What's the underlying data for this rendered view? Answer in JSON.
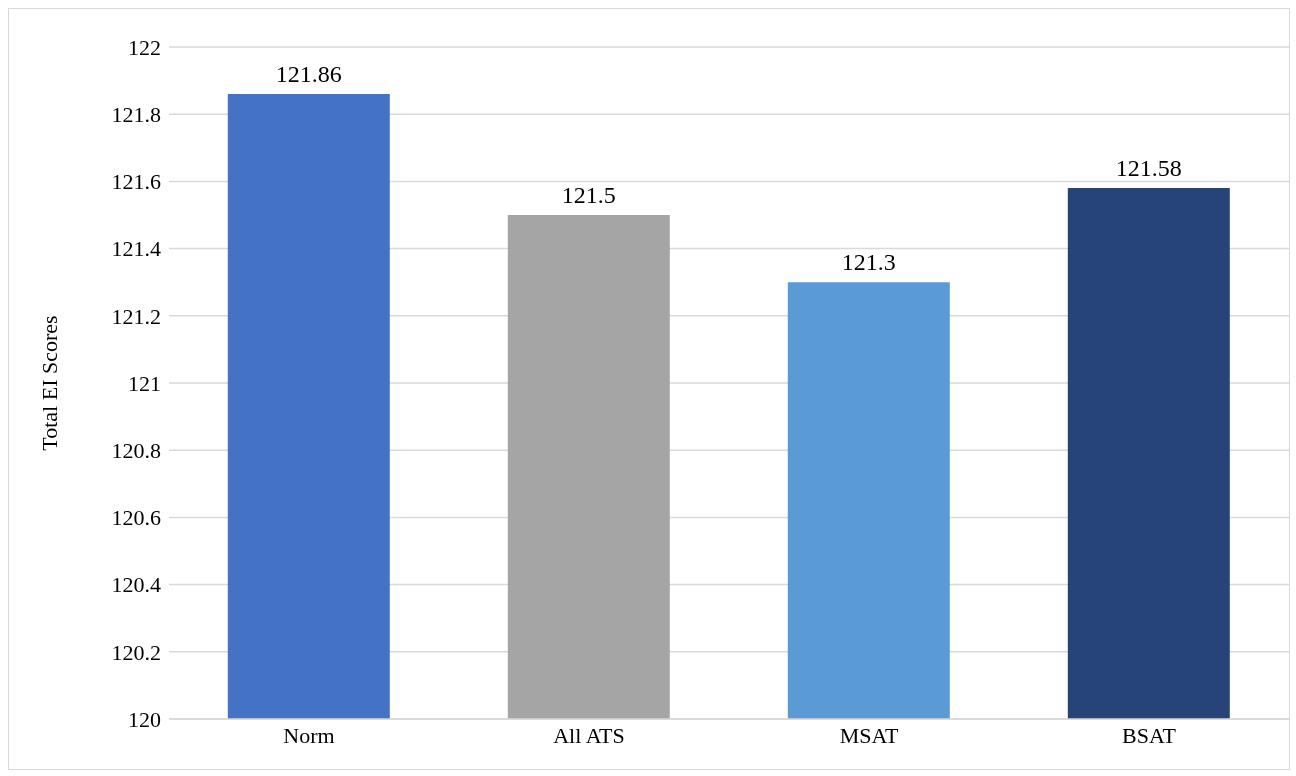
{
  "chart_data": {
    "type": "bar",
    "ylabel": "Total EI Scores",
    "categories": [
      "Norm",
      "All ATS",
      "MSAT",
      "BSAT"
    ],
    "values": [
      121.86,
      121.5,
      121.3,
      121.58
    ],
    "colors": [
      "#4472c4",
      "#a5a5a5",
      "#5b9bd5",
      "#264478"
    ],
    "ylim": [
      120,
      122
    ],
    "yticks": [
      120,
      120.2,
      120.4,
      120.6,
      120.8,
      121,
      121.2,
      121.4,
      121.6,
      121.8,
      122
    ],
    "grid": "y",
    "data_labels": true,
    "legend": false
  }
}
